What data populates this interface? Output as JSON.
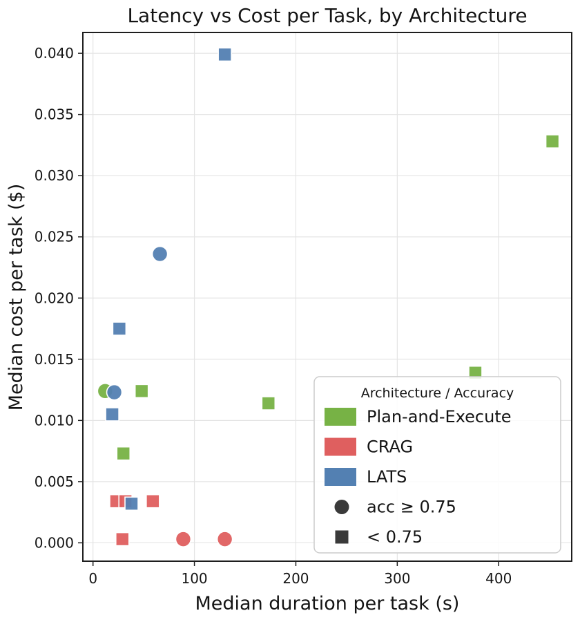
{
  "chart_data": {
    "type": "scatter",
    "title": "Latency vs Cost per Task, by Architecture",
    "xlabel": "Median duration per task (s)",
    "ylabel": "Median cost per task ($)",
    "xlim": [
      -10,
      472
    ],
    "ylim": [
      -0.0015,
      0.0417
    ],
    "xticks": [
      0,
      100,
      200,
      300,
      400
    ],
    "yticks": [
      0,
      0.005,
      0.01,
      0.015,
      0.02,
      0.025,
      0.03,
      0.035,
      0.04
    ],
    "grid": true,
    "legend": {
      "title": "Architecture / Accuracy",
      "position": "lower right",
      "entries": [
        {
          "type": "patch",
          "color": "#77b245",
          "label": "Plan-and-Execute"
        },
        {
          "type": "patch",
          "color": "#df5f5f",
          "label": "CRAG"
        },
        {
          "type": "patch",
          "color": "#5380b2",
          "label": "LATS"
        },
        {
          "type": "marker-circle",
          "color": "#3a3a3a",
          "label": "acc ≥ 0.75"
        },
        {
          "type": "marker-square",
          "color": "#3a3a3a",
          "label": "< 0.75"
        }
      ]
    },
    "series": [
      {
        "name": "Plan-and-Execute",
        "color": "#77b245",
        "points": [
          {
            "x": 12,
            "y": 0.0124,
            "marker": "circle"
          },
          {
            "x": 48,
            "y": 0.0124,
            "marker": "square"
          },
          {
            "x": 30,
            "y": 0.0073,
            "marker": "square"
          },
          {
            "x": 173,
            "y": 0.0114,
            "marker": "square"
          },
          {
            "x": 377,
            "y": 0.0139,
            "marker": "square"
          },
          {
            "x": 453,
            "y": 0.0328,
            "marker": "square"
          }
        ]
      },
      {
        "name": "CRAG",
        "color": "#df5f5f",
        "points": [
          {
            "x": 23,
            "y": 0.0034,
            "marker": "square"
          },
          {
            "x": 32,
            "y": 0.0034,
            "marker": "square"
          },
          {
            "x": 59,
            "y": 0.0034,
            "marker": "square"
          },
          {
            "x": 29,
            "y": 0.0003,
            "marker": "square"
          },
          {
            "x": 89,
            "y": 0.0003,
            "marker": "circle"
          },
          {
            "x": 130,
            "y": 0.0003,
            "marker": "circle"
          }
        ]
      },
      {
        "name": "LATS",
        "color": "#5380b2",
        "points": [
          {
            "x": 130,
            "y": 0.0399,
            "marker": "square"
          },
          {
            "x": 66,
            "y": 0.0236,
            "marker": "circle"
          },
          {
            "x": 26,
            "y": 0.0175,
            "marker": "square"
          },
          {
            "x": 21,
            "y": 0.0123,
            "marker": "circle"
          },
          {
            "x": 19,
            "y": 0.0105,
            "marker": "square"
          },
          {
            "x": 38,
            "y": 0.0032,
            "marker": "square"
          }
        ]
      }
    ]
  }
}
